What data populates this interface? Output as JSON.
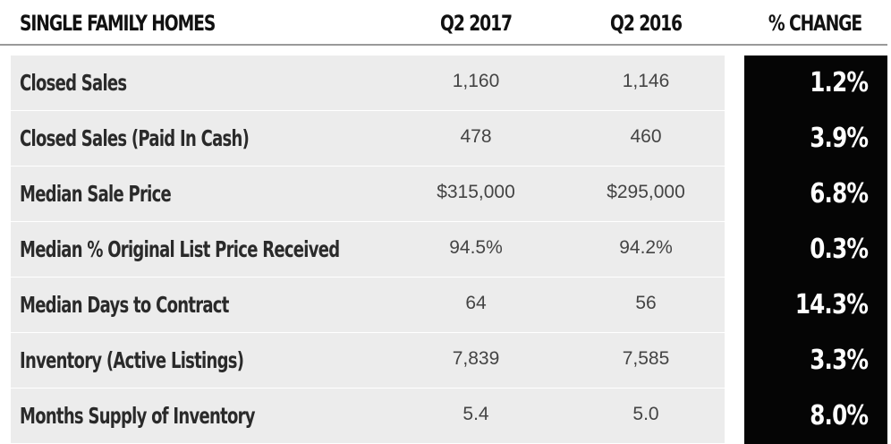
{
  "chart_data": {
    "type": "table",
    "columns": [
      "SINGLE FAMILY HOMES",
      "Q2 2017",
      "Q2 2016",
      "% CHANGE"
    ],
    "rows": [
      {
        "metric": "Closed Sales",
        "q2_2017": "1,160",
        "q2_2016": "1,146",
        "change": "1.2%"
      },
      {
        "metric": "Closed Sales (Paid In Cash)",
        "q2_2017": "478",
        "q2_2016": "460",
        "change": "3.9%"
      },
      {
        "metric": "Median Sale Price",
        "q2_2017": "$315,000",
        "q2_2016": "$295,000",
        "change": "6.8%"
      },
      {
        "metric": "Median % Original List Price Received",
        "q2_2017": "94.5%",
        "q2_2016": "94.2%",
        "change": "0.3%"
      },
      {
        "metric": "Median Days to Contract",
        "q2_2017": "64",
        "q2_2016": "56",
        "change": "14.3%"
      },
      {
        "metric": "Inventory (Active Listings)",
        "q2_2017": "7,839",
        "q2_2016": "7,585",
        "change": "3.3%"
      },
      {
        "metric": "Months Supply of Inventory",
        "q2_2017": "5.4",
        "q2_2016": "5.0",
        "change": "8.0%"
      }
    ]
  },
  "colors": {
    "row_background": "#ececec",
    "change_background": "#050505",
    "change_text": "#ffffff",
    "header_rule": "#9a9a9a"
  }
}
